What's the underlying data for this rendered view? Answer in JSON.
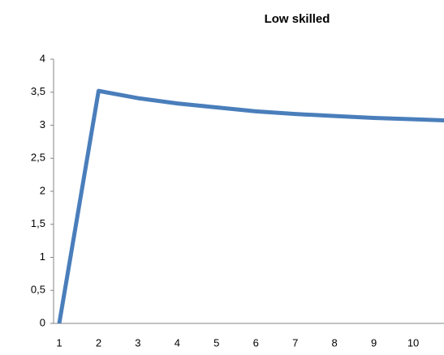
{
  "chart_data": {
    "type": "line",
    "title": "Low skilled",
    "categories": [
      "1",
      "2",
      "3",
      "4",
      "5",
      "6",
      "7",
      "8",
      "9",
      "10",
      null
    ],
    "series": [
      {
        "name": "Low skilled",
        "color": "#4a7ebb",
        "values": [
          0,
          3.52,
          3.41,
          3.33,
          3.27,
          3.21,
          3.17,
          3.14,
          3.11,
          3.09,
          3.07
        ]
      }
    ],
    "ylim": [
      0,
      4
    ],
    "yticks": [
      0,
      {
        "value": 0.5,
        "label": "0,5"
      },
      1,
      {
        "value": 1.5,
        "label": "1,5"
      },
      2,
      {
        "value": 2.5,
        "label": "2,5"
      },
      3,
      {
        "value": 3.5,
        "label": "3,5"
      },
      4
    ],
    "grid": false
  }
}
